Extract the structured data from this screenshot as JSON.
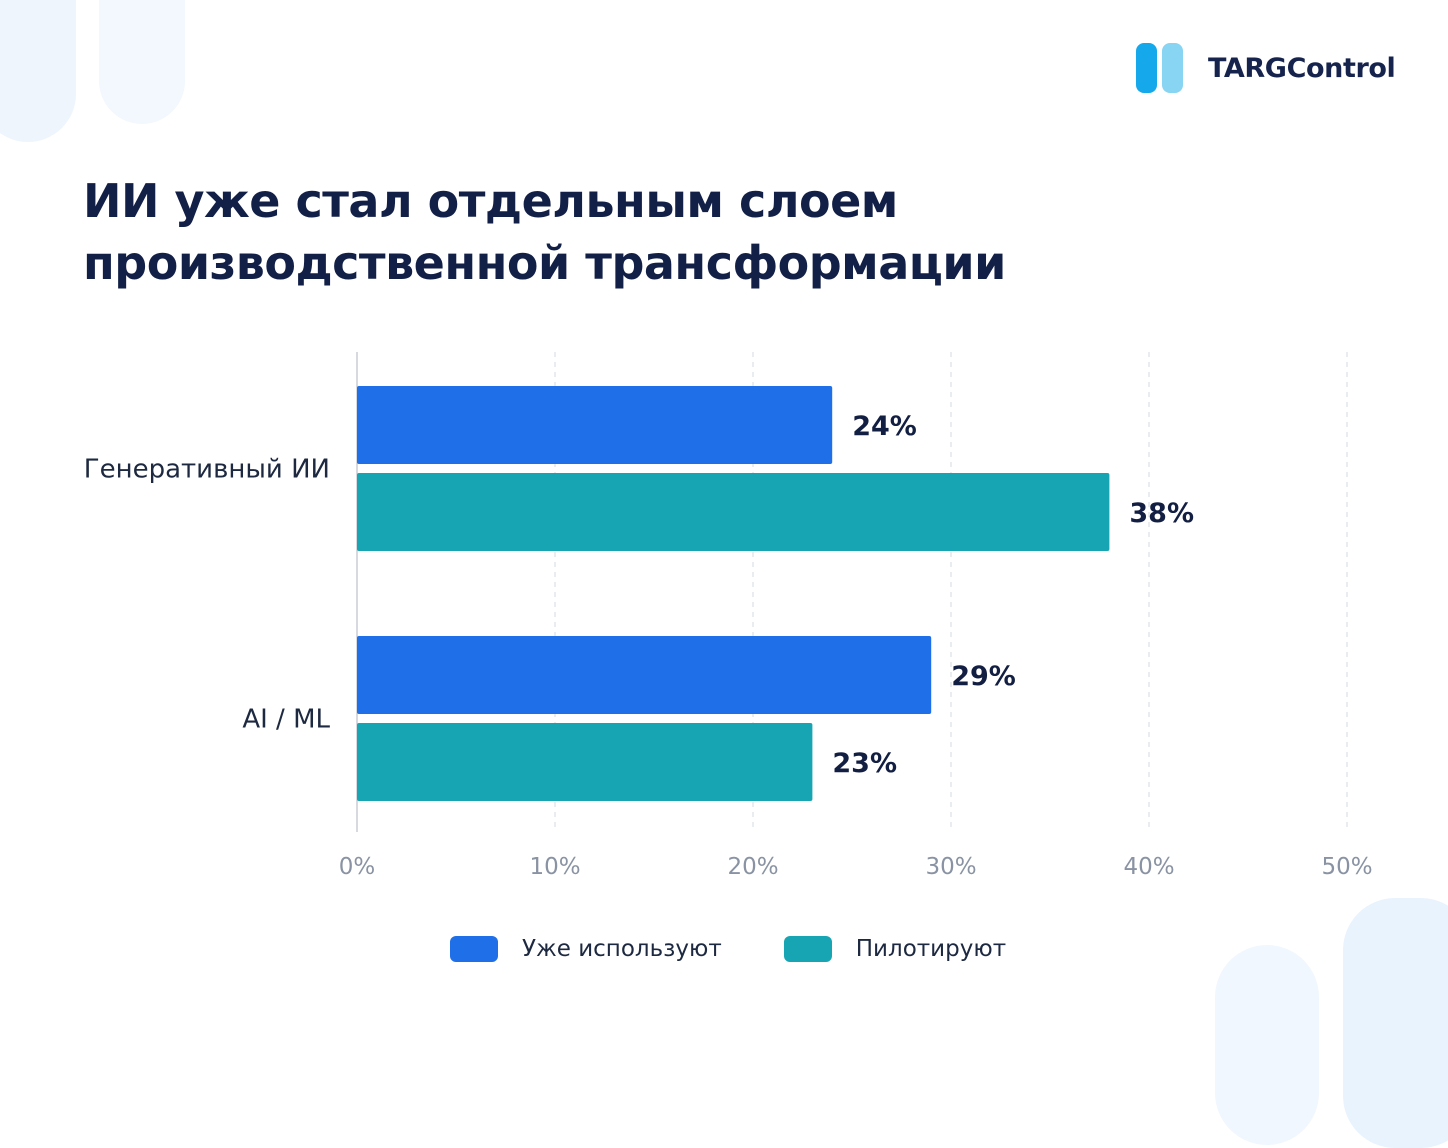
{
  "brand": {
    "name": "TARGControl",
    "mark_colors": [
      "#15a9ec",
      "#88d4f3"
    ]
  },
  "title": {
    "line1": "ИИ уже стал отдельным слоем",
    "line2": "производственной трансформации"
  },
  "chart_data": {
    "type": "bar",
    "orientation": "horizontal",
    "categories": [
      "Генеративный ИИ",
      "AI / ML"
    ],
    "series": [
      {
        "name": "Уже используют",
        "color": "#1f6fe8",
        "values": [
          24,
          29
        ],
        "value_labels": [
          "24%",
          "29%"
        ]
      },
      {
        "name": "Пилотируют",
        "color": "#18a5b3",
        "values": [
          38,
          23
        ],
        "value_labels": [
          "38%",
          "23%"
        ]
      }
    ],
    "xlim": [
      0,
      50
    ],
    "x_ticks": [
      0,
      10,
      20,
      30,
      40,
      50
    ],
    "x_tick_labels": [
      "0%",
      "10%",
      "20%",
      "30%",
      "40%",
      "50%"
    ],
    "grid": "vertical dashed",
    "legend_position": "bottom"
  }
}
